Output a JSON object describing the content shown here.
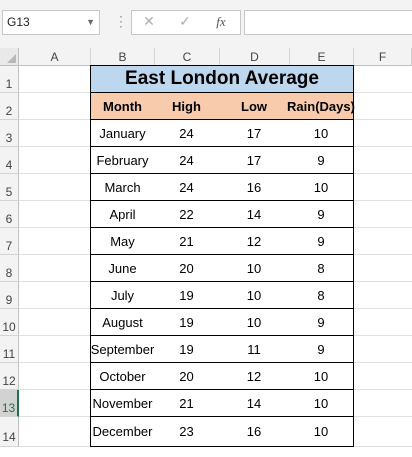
{
  "formula_bar": {
    "name_box": "G13",
    "cancel_icon": "✕",
    "enter_icon": "✓",
    "fx_label": "fx",
    "formula_value": ""
  },
  "columns": [
    "A",
    "B",
    "C",
    "D",
    "E",
    "F"
  ],
  "rows": [
    "1",
    "2",
    "3",
    "4",
    "5",
    "6",
    "7",
    "8",
    "9",
    "10",
    "11",
    "12",
    "13",
    "14"
  ],
  "selected_row": "13",
  "sheet": {
    "title": "East London Average",
    "headers": [
      "Month",
      "High",
      "Low",
      "Rain(Days)"
    ],
    "data": [
      [
        "January",
        "24",
        "17",
        "10"
      ],
      [
        "February",
        "24",
        "17",
        "9"
      ],
      [
        "March",
        "24",
        "16",
        "10"
      ],
      [
        "April",
        "22",
        "14",
        "9"
      ],
      [
        "May",
        "21",
        "12",
        "9"
      ],
      [
        "June",
        "20",
        "10",
        "8"
      ],
      [
        "July",
        "19",
        "10",
        "8"
      ],
      [
        "August",
        "19",
        "10",
        "9"
      ],
      [
        "September",
        "19",
        "11",
        "9"
      ],
      [
        "October",
        "20",
        "12",
        "10"
      ],
      [
        "November",
        "21",
        "14",
        "10"
      ],
      [
        "December",
        "23",
        "16",
        "10"
      ]
    ]
  },
  "colors": {
    "title_fill": "#bdd7ee",
    "header_fill": "#f8cbad",
    "selection_accent": "#217346"
  }
}
